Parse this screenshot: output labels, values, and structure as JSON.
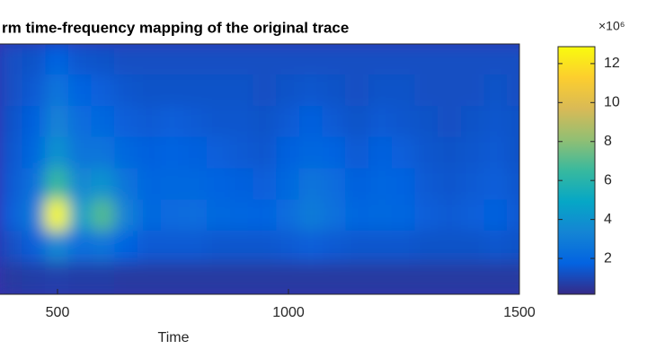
{
  "chart_data": {
    "type": "heatmap",
    "title": "rm time-frequency mapping of the original trace",
    "x_label": "Time",
    "xlim": [
      0,
      1500
    ],
    "xticks": [
      500,
      1000,
      1500
    ],
    "x": [
      400,
      450,
      500,
      550,
      600,
      650,
      700,
      750,
      800,
      850,
      900,
      950,
      1000,
      1050,
      1100,
      1150,
      1200,
      1250,
      1300,
      1350,
      1400,
      1450,
      1500
    ],
    "z": [
      [
        1.2,
        1.3,
        1.8,
        1.4,
        1.3,
        1.2,
        1.2,
        1.2,
        1.2,
        1.2,
        1.2,
        1.2,
        1.2,
        1.2,
        1.2,
        1.2,
        1.2,
        1.2,
        1.2,
        1.2,
        1.2,
        1.2,
        1.2
      ],
      [
        1.2,
        1.5,
        2.6,
        1.8,
        1.6,
        1.4,
        1.3,
        1.3,
        1.3,
        1.3,
        1.3,
        1.2,
        1.3,
        1.4,
        1.3,
        1.2,
        1.3,
        1.3,
        1.2,
        1.2,
        1.2,
        1.3,
        1.2
      ],
      [
        1.3,
        1.7,
        3.2,
        2.2,
        2.0,
        1.6,
        1.5,
        1.6,
        1.5,
        1.4,
        1.4,
        1.3,
        1.5,
        1.7,
        1.5,
        1.3,
        1.5,
        1.4,
        1.3,
        1.2,
        1.3,
        1.4,
        1.3
      ],
      [
        1.4,
        2.0,
        4.0,
        2.6,
        2.6,
        2.0,
        1.7,
        1.8,
        1.7,
        1.6,
        1.5,
        1.4,
        1.7,
        2.0,
        1.8,
        1.5,
        1.7,
        1.6,
        1.4,
        1.3,
        1.4,
        1.5,
        1.3
      ],
      [
        1.5,
        2.4,
        6.5,
        3.5,
        4.0,
        2.6,
        1.9,
        2.0,
        2.0,
        1.8,
        1.7,
        1.6,
        2.0,
        2.6,
        2.2,
        1.7,
        1.9,
        1.8,
        1.5,
        1.4,
        1.5,
        1.6,
        1.4
      ],
      [
        1.6,
        2.8,
        13,
        4.5,
        7.0,
        3.2,
        2.0,
        2.1,
        2.2,
        2.0,
        1.9,
        1.8,
        2.2,
        2.9,
        2.4,
        1.9,
        2.0,
        1.9,
        1.6,
        1.5,
        1.6,
        1.7,
        1.5
      ],
      [
        1.2,
        1.6,
        3.5,
        2.2,
        2.6,
        1.8,
        1.5,
        1.5,
        1.5,
        1.4,
        1.4,
        1.4,
        1.5,
        1.6,
        1.5,
        1.4,
        1.4,
        1.4,
        1.3,
        1.3,
        1.3,
        1.4,
        1.3
      ],
      [
        0.6,
        0.7,
        0.8,
        0.7,
        0.7,
        0.6,
        0.6,
        0.6,
        0.6,
        0.6,
        0.6,
        0.6,
        0.6,
        0.6,
        0.6,
        0.6,
        0.6,
        0.6,
        0.6,
        0.6,
        0.6,
        0.6,
        0.6
      ]
    ],
    "clim": [
      0.16,
      12.87
    ],
    "colorbar_ticks": [
      2,
      4,
      6,
      8,
      10,
      12
    ],
    "colorbar_exponent": "×10⁶",
    "colormap": [
      "#352a87",
      "#0363e1",
      "#1485d4",
      "#06a7c6",
      "#38b99e",
      "#92bf73",
      "#d9ba56",
      "#fcce2e",
      "#f9fb0e"
    ]
  }
}
